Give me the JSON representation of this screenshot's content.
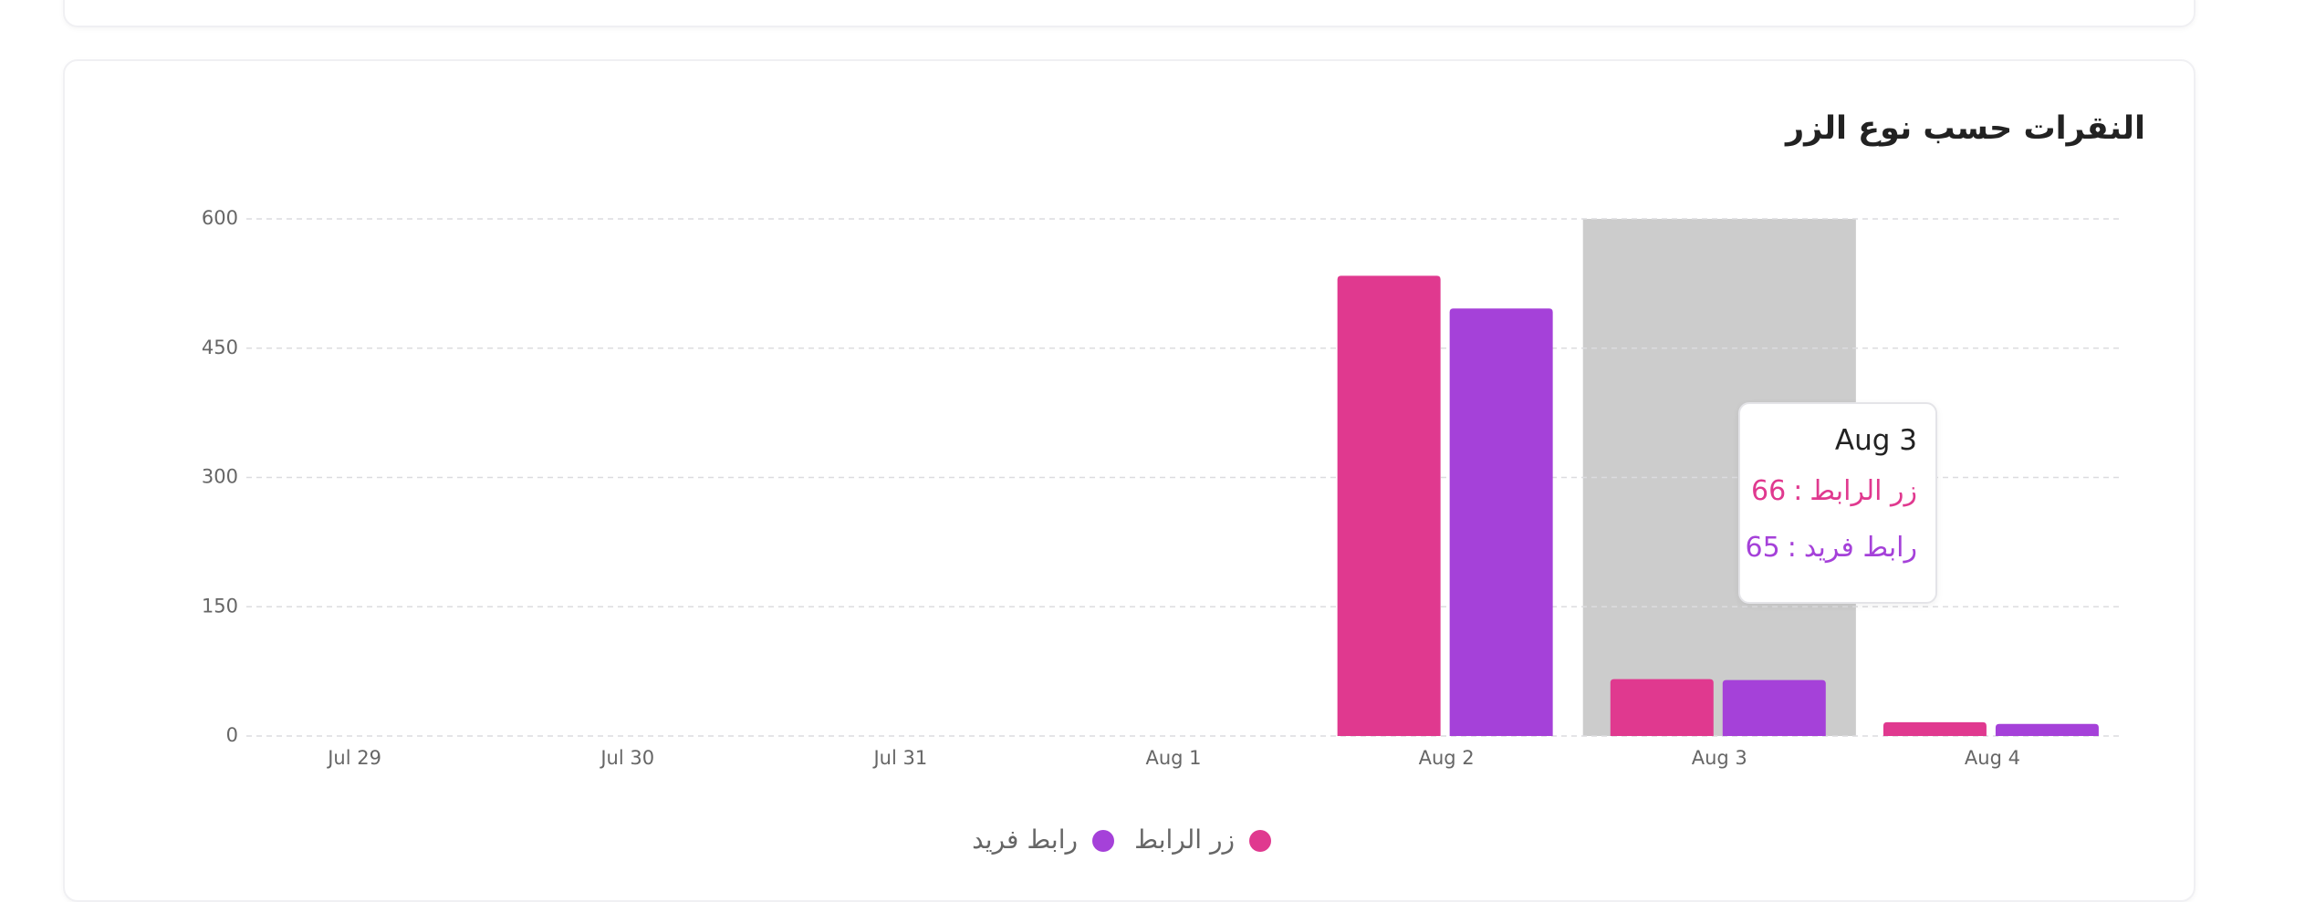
{
  "card_title": "النقرات حسب نوع الزر",
  "chart_data": {
    "type": "bar",
    "categories": [
      "Jul 29",
      "Jul 30",
      "Jul 31",
      "Aug 1",
      "Aug 2",
      "Aug 3",
      "Aug 4"
    ],
    "series": [
      {
        "name": "زر الرابط",
        "color": "#e0398f",
        "values": [
          0,
          0,
          0,
          0,
          534,
          66,
          16
        ]
      },
      {
        "name": "رابط فريد",
        "color": "#a541d9",
        "values": [
          0,
          0,
          0,
          0,
          496,
          65,
          14
        ]
      }
    ],
    "ylim": [
      0,
      600
    ],
    "yticks": [
      0,
      150,
      300,
      450,
      600
    ],
    "grid": true,
    "tooltip": {
      "separator": ":"
    }
  }
}
